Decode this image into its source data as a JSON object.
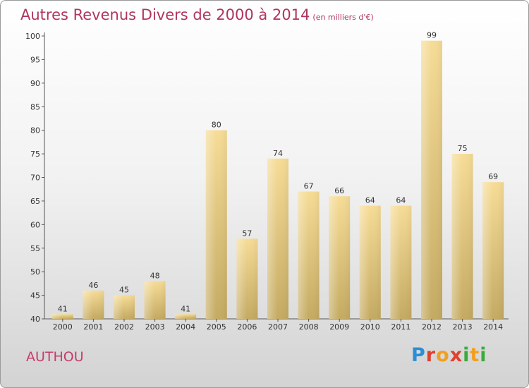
{
  "title": "Autres Revenus Divers de 2000 à 2014",
  "subtitle": "(en milliers d'€)",
  "place": "AUTHOU",
  "logo": {
    "text": "Proxiti"
  },
  "colors": {
    "bar_top": "#f6dc96",
    "bar_bottom": "#c4aa62",
    "title": "#b03560"
  },
  "chart_data": {
    "type": "bar",
    "categories": [
      "2000",
      "2001",
      "2002",
      "2003",
      "2004",
      "2005",
      "2006",
      "2007",
      "2008",
      "2009",
      "2010",
      "2011",
      "2012",
      "2013",
      "2014"
    ],
    "values": [
      41,
      46,
      45,
      48,
      41,
      80,
      57,
      74,
      67,
      66,
      64,
      64,
      99,
      75,
      69
    ],
    "ylim": [
      40,
      100
    ],
    "yticks": [
      40,
      45,
      50,
      55,
      60,
      65,
      70,
      75,
      80,
      85,
      90,
      95,
      100
    ],
    "grid": false,
    "legend": "none"
  }
}
